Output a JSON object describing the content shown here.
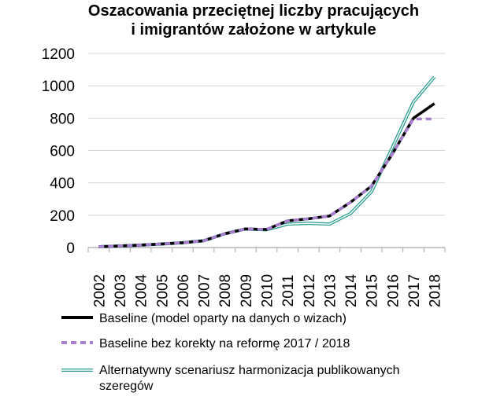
{
  "chart_data": {
    "type": "line",
    "title_lines": [
      "Oszacowania przeciętnej liczby pracujących",
      "i imigrantów założone w artykule"
    ],
    "x": [
      "2002",
      "2003",
      "2004",
      "2005",
      "2006",
      "2007",
      "2008",
      "2009",
      "2010",
      "2011",
      "2012",
      "2013",
      "2014",
      "2015",
      "2016",
      "2017",
      "2018"
    ],
    "ylim": [
      0,
      1200
    ],
    "yticks": [
      "0",
      "200",
      "400",
      "600",
      "800",
      "1000",
      "1200"
    ],
    "grid": true,
    "legend_position": "bottom",
    "series": [
      {
        "name": "Baseline (model oparty na danych o wizach)",
        "style": "solid-black",
        "color": "#000000",
        "values": [
          5,
          10,
          15,
          22,
          30,
          42,
          85,
          115,
          112,
          165,
          178,
          195,
          280,
          380,
          580,
          800,
          890
        ]
      },
      {
        "name": "Baseline bez korekty na reformę 2017 / 2018",
        "style": "dashed",
        "color": "#a97fd0",
        "values": [
          5,
          10,
          15,
          22,
          30,
          42,
          85,
          115,
          112,
          165,
          178,
          195,
          280,
          380,
          580,
          795,
          795
        ]
      },
      {
        "name": "Alternatywny scenariusz harmonizacja publikowanych szeregów",
        "style": "double-teal",
        "color": "#2e9e90",
        "values": [
          5,
          10,
          15,
          22,
          30,
          42,
          85,
          115,
          110,
          145,
          150,
          145,
          210,
          345,
          620,
          900,
          1055
        ]
      }
    ]
  }
}
